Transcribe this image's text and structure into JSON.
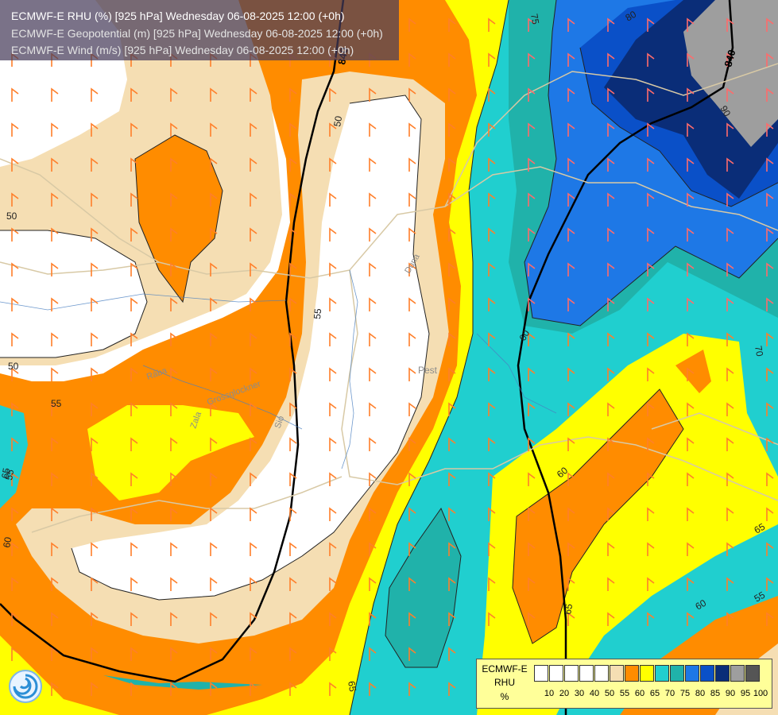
{
  "title": {
    "line1": "ECMWF-E RHU (%) [925 hPa] Wednesday 06-08-2025 12:00 (+0h)",
    "line2": "ECMWF-E Geopotential (m) [925 hPa] Wednesday 06-08-2025 12:00 (+0h)",
    "line3": "ECMWF-E Wind (m/s) [925 hPa] Wednesday 06-08-2025 12:00 (+0h)"
  },
  "legend": {
    "title1": "ECMWF-E",
    "title2": "RHU",
    "title3": "%",
    "bins": [
      {
        "color": "#ffffff"
      },
      {
        "color": "#ffffff"
      },
      {
        "color": "#ffffff"
      },
      {
        "color": "#ffffff"
      },
      {
        "color": "#ffffff"
      },
      {
        "color": "#f5deb3"
      },
      {
        "color": "#ff8c00"
      },
      {
        "color": "#ffff00"
      },
      {
        "color": "#20cfcf"
      },
      {
        "color": "#20b2aa"
      },
      {
        "color": "#1e78e6"
      },
      {
        "color": "#0a50c8"
      },
      {
        "color": "#0a2d78"
      },
      {
        "color": "#9e9e9e"
      },
      {
        "color": "#555555"
      }
    ],
    "ticks": [
      "10",
      "20",
      "30",
      "40",
      "50",
      "55",
      "60",
      "65",
      "70",
      "75",
      "80",
      "85",
      "90",
      "95",
      "100"
    ]
  },
  "contour_labels": [
    {
      "text": "50"
    },
    {
      "text": "50"
    },
    {
      "text": "50"
    },
    {
      "text": "55"
    },
    {
      "text": "55"
    },
    {
      "text": "55"
    },
    {
      "text": "60"
    },
    {
      "text": "65"
    },
    {
      "text": "65"
    },
    {
      "text": "60"
    },
    {
      "text": "55"
    },
    {
      "text": "70"
    },
    {
      "text": "65"
    },
    {
      "text": "60"
    },
    {
      "text": "60"
    },
    {
      "text": "75"
    },
    {
      "text": "80"
    },
    {
      "text": "90"
    },
    {
      "text": "65"
    }
  ],
  "geopotential_labels": [
    {
      "text": "840"
    },
    {
      "text": "840"
    }
  ],
  "place_labels": [
    {
      "text": "Pest"
    },
    {
      "text": "Zala"
    },
    {
      "text": "Rába"
    },
    {
      "text": "Sió"
    },
    {
      "text": "Duna"
    },
    {
      "text": "Grossglockner"
    }
  ]
}
